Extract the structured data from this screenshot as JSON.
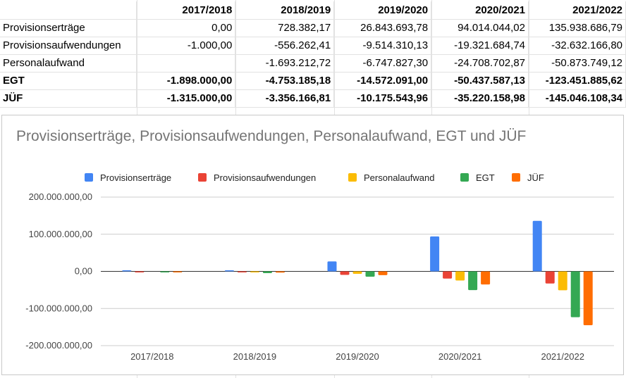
{
  "table": {
    "columns": [
      "",
      "2017/2018",
      "2018/2019",
      "2019/2020",
      "2020/2021",
      "2021/2022"
    ],
    "rows": [
      {
        "label": "Provisionserträge",
        "values": [
          "0,00",
          "728.382,17",
          "26.843.693,78",
          "94.014.044,02",
          "135.938.686,79"
        ],
        "bold": false
      },
      {
        "label": "Provisionsaufwendungen",
        "values": [
          "-1.000,00",
          "-556.262,41",
          "-9.514.310,13",
          "-19.321.684,74",
          "-32.632.166,80"
        ],
        "bold": false
      },
      {
        "label": "Personalaufwand",
        "values": [
          "",
          "-1.693.212,72",
          "-6.747.827,30",
          "-24.708.702,87",
          "-50.873.749,12"
        ],
        "bold": false
      },
      {
        "label": "EGT",
        "values": [
          "-1.898.000,00",
          "-4.753.185,18",
          "-14.572.091,00",
          "-50.437.587,13",
          "-123.451.885,62"
        ],
        "bold": true
      },
      {
        "label": "JÜF",
        "values": [
          "-1.315.000,00",
          "-3.356.166,81",
          "-10.175.543,96",
          "-35.220.158,98",
          "-145.046.108,34"
        ],
        "bold": true
      }
    ]
  },
  "chart_data": {
    "type": "bar",
    "title": "Provisionserträge, Provisionsaufwendungen, Personalaufwand, EGT und JÜF",
    "categories": [
      "2017/2018",
      "2018/2019",
      "2019/2020",
      "2020/2021",
      "2021/2022"
    ],
    "series": [
      {
        "name": "Provisionserträge",
        "color": "#4285f4",
        "values": [
          0,
          728382.17,
          26843693.78,
          94014044.02,
          135938686.79
        ]
      },
      {
        "name": "Provisionsaufwendungen",
        "color": "#ea4335",
        "values": [
          -1000,
          -556262.41,
          -9514310.13,
          -19321684.74,
          -32632166.8
        ]
      },
      {
        "name": "Personalaufwand",
        "color": "#fbbc04",
        "values": [
          null,
          -1693212.72,
          -6747827.3,
          -24708702.87,
          -50873749.12
        ]
      },
      {
        "name": "EGT",
        "color": "#34a853",
        "values": [
          -1898000,
          -4753185.18,
          -14572091.0,
          -50437587.13,
          -123451885.62
        ]
      },
      {
        "name": "JÜF",
        "color": "#ff6d01",
        "values": [
          -1315000,
          -3356166.81,
          -10175543.96,
          -35220158.98,
          -145046108.34
        ]
      }
    ],
    "ylim": [
      -200000000,
      200000000
    ],
    "yticks": [
      200000000,
      100000000,
      0,
      -100000000,
      -200000000
    ],
    "ytick_labels": [
      "200.000.000,00",
      "100.000.000,00",
      "0,00",
      "-100.000.000,00",
      "-200.000.000,00"
    ],
    "grid": true,
    "legend_position": "top"
  }
}
